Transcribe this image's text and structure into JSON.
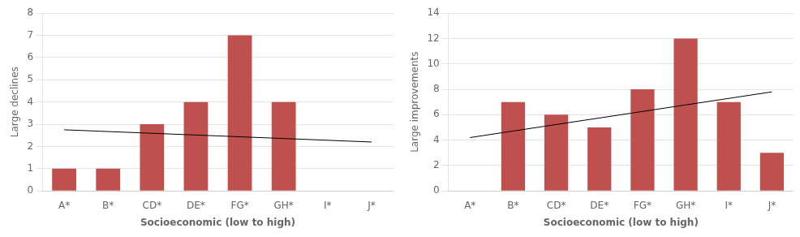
{
  "chart_data": [
    {
      "type": "bar",
      "categories": [
        "A*",
        "B*",
        "CD*",
        "DE*",
        "FG*",
        "GH*",
        "I*",
        "J*"
      ],
      "series": [
        {
          "type": "bar",
          "color": "#c0504d",
          "values": [
            1,
            1,
            3,
            4,
            7,
            4,
            0,
            0
          ]
        },
        {
          "type": "line",
          "color": "#000000",
          "values": [
            2.75,
            null,
            null,
            null,
            null,
            null,
            null,
            2.2
          ]
        }
      ],
      "xlabel": "Socioeconomic (low to high)",
      "ylabel": "Large declines",
      "ylim": [
        0,
        8
      ],
      "yticks": [
        0,
        1,
        2,
        3,
        4,
        5,
        6,
        7,
        8
      ],
      "grid": true
    },
    {
      "type": "bar",
      "categories": [
        "A*",
        "B*",
        "CD*",
        "DE*",
        "FG*",
        "GH*",
        "I*",
        "J*"
      ],
      "series": [
        {
          "type": "bar",
          "color": "#c0504d",
          "values": [
            0,
            7,
            6,
            5,
            8,
            12,
            7,
            3
          ]
        },
        {
          "type": "line",
          "color": "#000000",
          "values": [
            4.2,
            null,
            null,
            null,
            null,
            null,
            null,
            7.8
          ]
        }
      ],
      "xlabel": "Socioeconomic (low to high)",
      "ylabel": "Large improvements",
      "ylim": [
        0,
        14
      ],
      "yticks": [
        0,
        2,
        4,
        6,
        8,
        10,
        12,
        14
      ],
      "grid": true
    }
  ]
}
